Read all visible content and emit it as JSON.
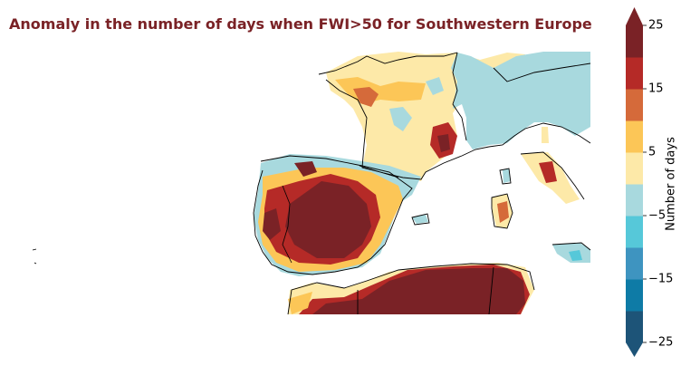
{
  "title": "Anomaly in the number of days when FWI>50 for Southwestern Europe",
  "title_color": "#7a2226",
  "colorbar": {
    "label": "Number of days",
    "tick_labels": [
      "25",
      "15",
      "5",
      "−5",
      "−15",
      "−25"
    ],
    "extend": "both",
    "levels": [
      -25,
      -20,
      -15,
      -10,
      -5,
      0,
      5,
      10,
      15,
      20,
      25
    ],
    "colors": [
      "#1d5478",
      "#0e7ba6",
      "#3e94c0",
      "#56c8d9",
      "#a8d9de",
      "#fde9a8",
      "#fcc657",
      "#d56a3a",
      "#b52a27",
      "#7a2226"
    ],
    "over_color": "#7a2226",
    "under_color": "#1d5478"
  }
}
